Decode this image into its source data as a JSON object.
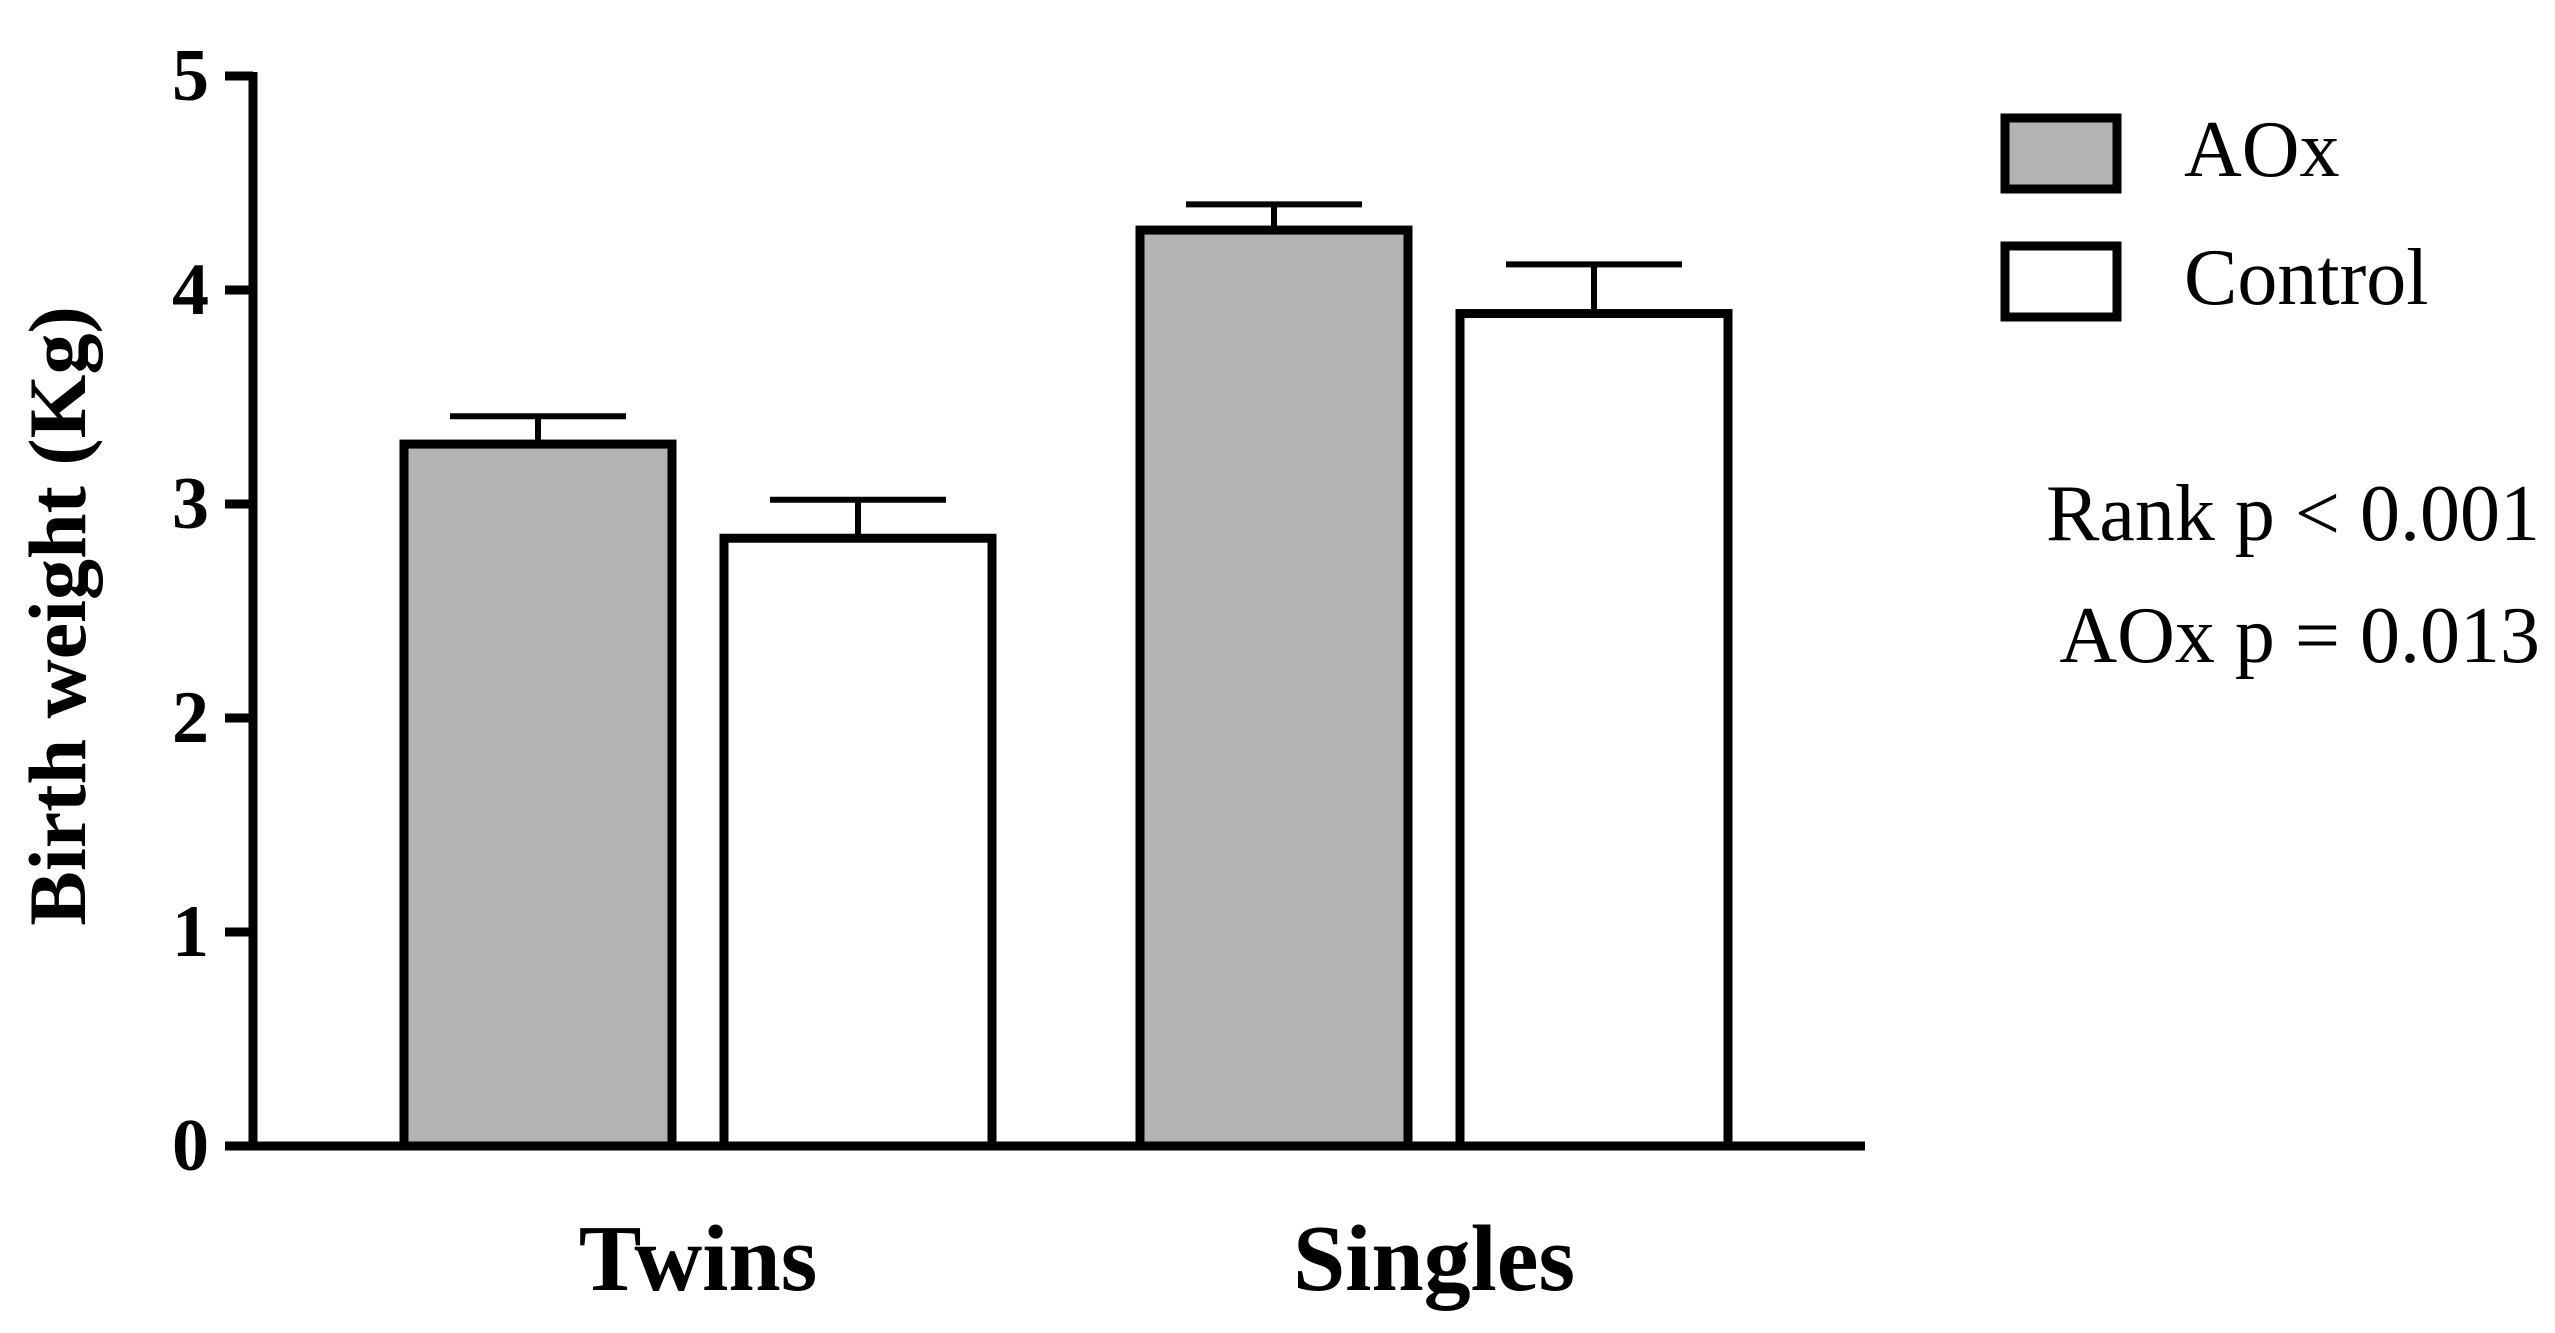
{
  "chart_data": {
    "type": "bar",
    "categories": [
      "Twins",
      "Singles"
    ],
    "series": [
      {
        "name": "AOx",
        "values": [
          3.28,
          4.28
        ],
        "errors": [
          0.13,
          0.12
        ],
        "color": "#b3b3b3"
      },
      {
        "name": "Control",
        "values": [
          2.84,
          3.89
        ],
        "errors": [
          0.18,
          0.23
        ],
        "color": "#ffffff"
      }
    ],
    "ylabel": "Birth weight (Kg)",
    "xlabel": "",
    "ylim": [
      0,
      5
    ],
    "yticks": [
      "0",
      "1",
      "2",
      "3",
      "4",
      "5"
    ],
    "grid": false,
    "legend_position": "top-right",
    "annotations": [
      "Rank p < 0.001",
      "AOx p = 0.013"
    ]
  }
}
